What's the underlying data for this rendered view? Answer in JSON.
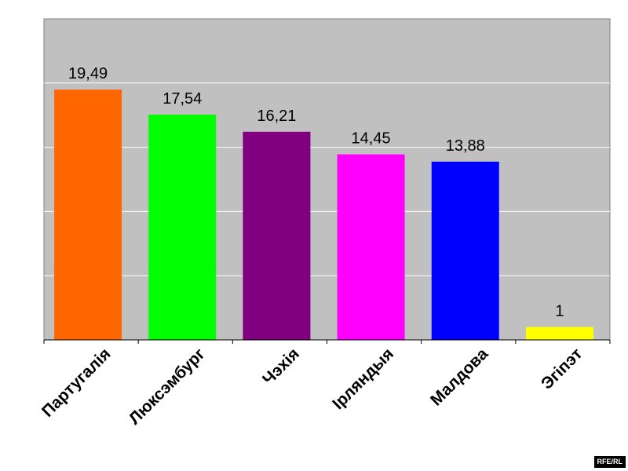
{
  "chart_data": {
    "type": "bar",
    "categories": [
      "Партугалія",
      "Люксэмбург",
      "Чэхія",
      "Ірляндыя",
      "Малдова",
      "Эгіпэт"
    ],
    "values": [
      19.49,
      17.54,
      16.21,
      14.45,
      13.88,
      1
    ],
    "value_labels": [
      "19,49",
      "17,54",
      "16,21",
      "14,45",
      "13,88",
      "1"
    ],
    "colors": [
      "#ff6600",
      "#00ff00",
      "#800080",
      "#ff00ff",
      "#0000ff",
      "#ffff00"
    ],
    "ylim": [
      0,
      25
    ],
    "grid": true,
    "plot_background": "#c0c0c0",
    "title": "",
    "xlabel": "",
    "ylabel": ""
  },
  "badge": "RFE/RL"
}
